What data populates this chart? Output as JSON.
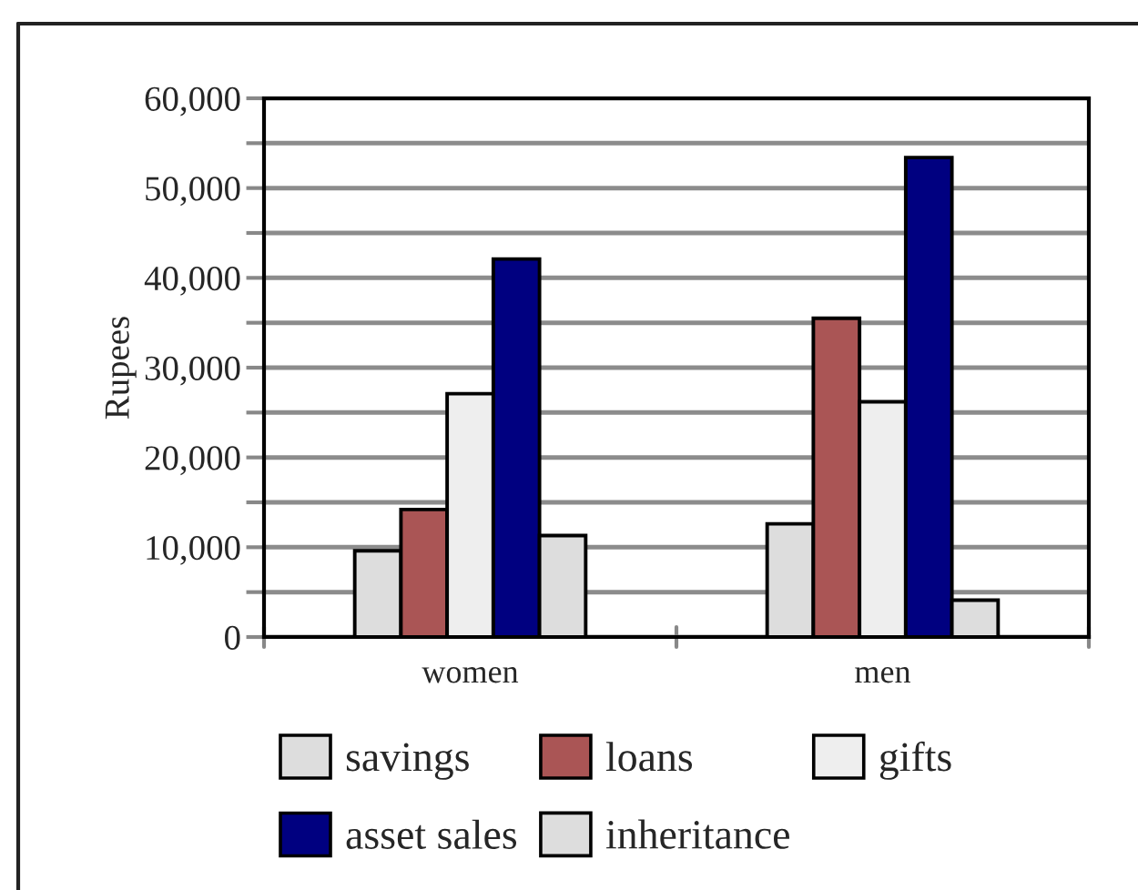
{
  "chart_data": {
    "type": "bar",
    "ylabel": "Rupees",
    "categories": [
      "women",
      "men"
    ],
    "series": [
      {
        "name": "savings",
        "color": "#dddddd",
        "values": [
          9600,
          12600
        ]
      },
      {
        "name": "loans",
        "color": "#aa5555",
        "values": [
          14200,
          35500
        ]
      },
      {
        "name": "gifts",
        "color": "#eeeeee",
        "values": [
          27100,
          26200
        ]
      },
      {
        "name": "asset sales",
        "color": "#000080",
        "values": [
          42100,
          53400
        ]
      },
      {
        "name": "inheritance",
        "color": "#dddddd",
        "values": [
          11300,
          4100
        ]
      }
    ],
    "ylim": [
      0,
      60000
    ],
    "yticks": [
      0,
      {
        "value": 5000,
        "label": null
      },
      {
        "value": 10000,
        "label": "10,000"
      },
      {
        "value": 15000,
        "label": null
      },
      {
        "value": 20000,
        "label": "20,000"
      },
      {
        "value": 25000,
        "label": null
      },
      {
        "value": 30000,
        "label": "30,000"
      },
      {
        "value": 35000,
        "label": null
      },
      {
        "value": 40000,
        "label": "40,000"
      },
      {
        "value": 45000,
        "label": null
      },
      {
        "value": 50000,
        "label": "50,000"
      },
      {
        "value": 55000,
        "label": null
      },
      {
        "value": 60000,
        "label": "60,000"
      }
    ],
    "grid": "y",
    "legend": "bottom"
  }
}
